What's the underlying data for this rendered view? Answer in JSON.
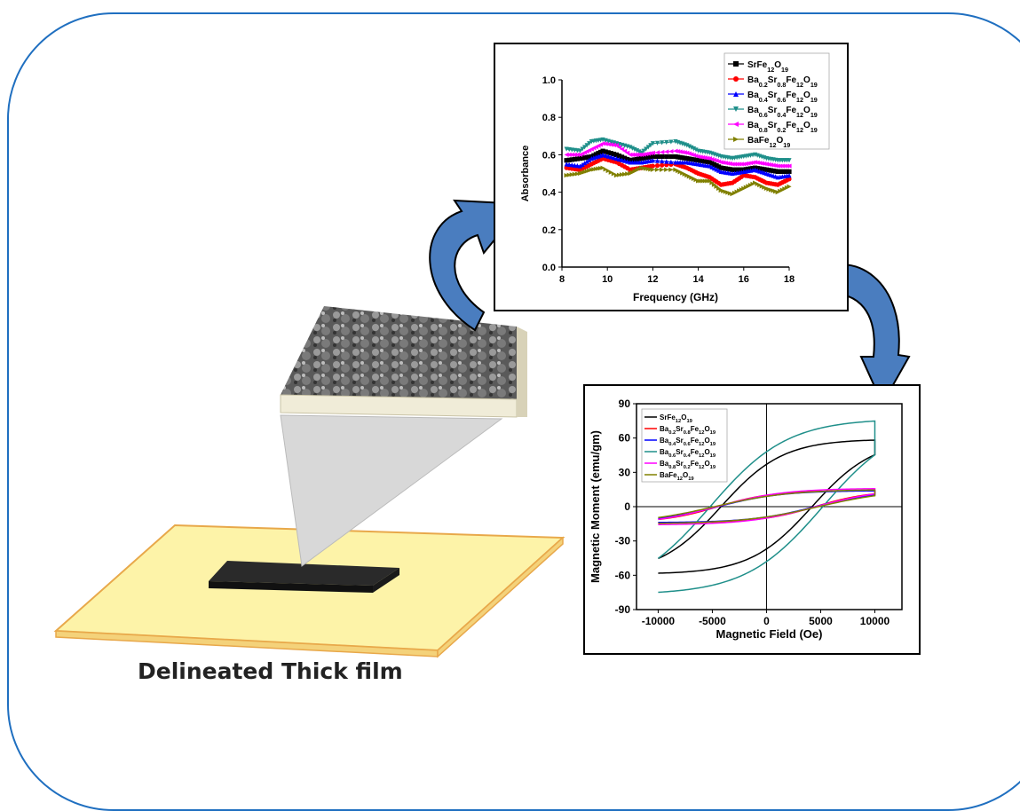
{
  "caption": "Delineated Thick film",
  "chart_data": [
    {
      "type": "line",
      "xlabel": "Frequency (GHz)",
      "ylabel": "Absorbance",
      "xlim": [
        8,
        18
      ],
      "ylim": [
        0.0,
        1.0
      ],
      "xticks": [
        "8",
        "10",
        "12",
        "14",
        "16",
        "18"
      ],
      "yticks": [
        "0.0",
        "0.2",
        "0.4",
        "0.6",
        "0.8",
        "1.0"
      ],
      "legend_placement": "top-right",
      "series": [
        {
          "name": "SrFe12O19",
          "color": "#000000",
          "marker": "square",
          "x": [
            8.2,
            8.8,
            9.3,
            9.8,
            10.4,
            11,
            11.5,
            12,
            13,
            13.5,
            14,
            14.5,
            15,
            15.5,
            16,
            16.5,
            17,
            17.5,
            18
          ],
          "y": [
            0.57,
            0.58,
            0.59,
            0.62,
            0.6,
            0.57,
            0.58,
            0.59,
            0.59,
            0.58,
            0.57,
            0.56,
            0.53,
            0.52,
            0.52,
            0.53,
            0.52,
            0.51,
            0.51
          ]
        },
        {
          "name": "Ba0.2Sr0.8Fe12O19",
          "color": "#ff0000",
          "marker": "circle",
          "x": [
            8.2,
            8.8,
            9.3,
            9.8,
            10.4,
            11,
            11.5,
            12,
            13,
            13.5,
            14,
            14.5,
            15,
            15.5,
            16,
            16.5,
            17,
            17.5,
            18
          ],
          "y": [
            0.53,
            0.52,
            0.55,
            0.58,
            0.56,
            0.52,
            0.53,
            0.54,
            0.55,
            0.53,
            0.5,
            0.48,
            0.44,
            0.45,
            0.49,
            0.48,
            0.45,
            0.44,
            0.47
          ]
        },
        {
          "name": "Ba0.4Sr0.6Fe12O19",
          "color": "#0000ff",
          "marker": "triangle-up",
          "x": [
            8.2,
            8.8,
            9.3,
            9.8,
            10.4,
            11,
            11.5,
            12,
            13,
            13.5,
            14,
            14.5,
            15,
            15.5,
            16,
            16.5,
            17,
            17.5,
            18
          ],
          "y": [
            0.55,
            0.54,
            0.58,
            0.6,
            0.58,
            0.56,
            0.56,
            0.57,
            0.56,
            0.56,
            0.55,
            0.54,
            0.51,
            0.5,
            0.51,
            0.52,
            0.5,
            0.48,
            0.49
          ]
        },
        {
          "name": "Ba0.6Sr0.4Fe12O19",
          "color": "#1f8f8a",
          "marker": "triangle-down",
          "x": [
            8.2,
            8.8,
            9.3,
            9.8,
            10.4,
            11,
            11.5,
            12,
            13,
            13.5,
            14,
            14.5,
            15,
            15.5,
            16,
            16.5,
            17,
            17.5,
            18
          ],
          "y": [
            0.63,
            0.62,
            0.67,
            0.68,
            0.66,
            0.64,
            0.61,
            0.66,
            0.67,
            0.65,
            0.62,
            0.61,
            0.59,
            0.58,
            0.59,
            0.6,
            0.58,
            0.57,
            0.57
          ]
        },
        {
          "name": "Ba0.8Sr0.2Fe12O19",
          "color": "#ff00ff",
          "marker": "triangle-left",
          "x": [
            8.2,
            8.8,
            9.3,
            9.8,
            10.4,
            11,
            11.5,
            12,
            13,
            13.5,
            14,
            14.5,
            15,
            15.5,
            16,
            16.5,
            17,
            17.5,
            18
          ],
          "y": [
            0.6,
            0.6,
            0.63,
            0.66,
            0.65,
            0.6,
            0.6,
            0.61,
            0.62,
            0.61,
            0.59,
            0.58,
            0.56,
            0.55,
            0.55,
            0.56,
            0.55,
            0.54,
            0.54
          ]
        },
        {
          "name": "BaFe12O19",
          "color": "#808000",
          "marker": "triangle-right",
          "x": [
            8.2,
            8.8,
            9.3,
            9.8,
            10.4,
            11,
            11.5,
            12,
            13,
            13.5,
            14,
            14.5,
            15,
            15.5,
            16,
            16.5,
            17,
            17.5,
            18
          ],
          "y": [
            0.49,
            0.5,
            0.52,
            0.53,
            0.49,
            0.5,
            0.53,
            0.52,
            0.52,
            0.49,
            0.46,
            0.46,
            0.41,
            0.39,
            0.42,
            0.45,
            0.42,
            0.4,
            0.43
          ]
        }
      ]
    },
    {
      "type": "line",
      "xlabel": "Magnetic Field (Oe)",
      "ylabel": "Magnetic Moment (emu/gm)",
      "xlim": [
        -12000,
        12500
      ],
      "ylim": [
        -90,
        90
      ],
      "xticks": [
        "-10000",
        "-5000",
        "0",
        "5000",
        "10000"
      ],
      "yticks": [
        "-90",
        "-60",
        "-30",
        "0",
        "30",
        "60",
        "90"
      ],
      "legend_placement": "top-left",
      "series": [
        {
          "name": "SrFe12O19",
          "color": "#000000",
          "Ms": 59,
          "Mr": 37,
          "Hc": 4200
        },
        {
          "name": "Ba0.2Sr0.8Fe12O19",
          "color": "#ff0000",
          "Ms": 14,
          "Mr": 10,
          "Hc": 4500
        },
        {
          "name": "Ba0.4Sr0.6Fe12O19",
          "color": "#0000ff",
          "Ms": 14,
          "Mr": 9,
          "Hc": 4500
        },
        {
          "name": "Ba0.6Sr0.4Fe12O19",
          "color": "#1f8f8a",
          "Ms": 77,
          "Mr": 48,
          "Hc": 5200
        },
        {
          "name": "Ba0.8Sr0.2Fe12O19",
          "color": "#ff00ff",
          "Ms": 16,
          "Mr": 10,
          "Hc": 4600
        },
        {
          "name": "BaFe12O19",
          "color": "#808000",
          "Ms": 15,
          "Mr": 9,
          "Hc": 4800
        }
      ]
    }
  ],
  "colors": {
    "frame": "#1f6fc0",
    "arrow_fill": "#4a7dbf",
    "substrate": "#fdf3a8",
    "substrate_edge": "#e8a84a"
  }
}
